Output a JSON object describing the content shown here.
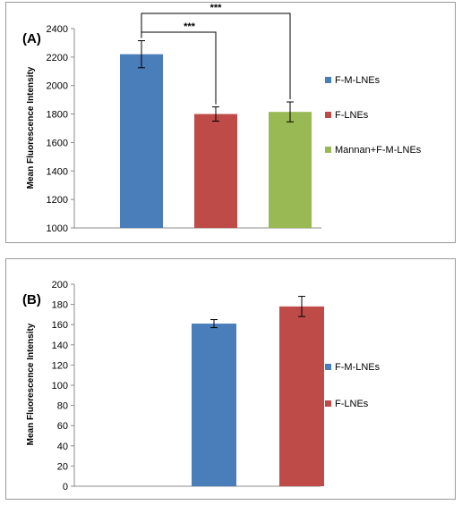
{
  "chart_data": [
    {
      "type": "bar",
      "panel_label": "(A)",
      "title": "",
      "xlabel": "",
      "ylabel": "Mean Fluorescence Intensity",
      "ylim": [
        1000,
        2400
      ],
      "yticks": [
        1000,
        1200,
        1400,
        1600,
        1800,
        2000,
        2200,
        2400
      ],
      "grid": false,
      "legend_position": "right",
      "series": [
        {
          "name": "F-M-LNEs",
          "value": 2220,
          "error": 95,
          "color": "#4a7ebb"
        },
        {
          "name": "F-LNEs",
          "value": 1800,
          "error": 50,
          "color": "#be4b48"
        },
        {
          "name": "Mannan+F-M-LNEs",
          "value": 1815,
          "error": 70,
          "color": "#98b954"
        }
      ],
      "annotations": [
        {
          "from": "F-M-LNEs",
          "to": "F-LNEs",
          "text": "***"
        },
        {
          "from": "F-M-LNEs",
          "to": "Mannan+F-M-LNEs",
          "text": "***"
        }
      ]
    },
    {
      "type": "bar",
      "panel_label": "(B)",
      "title": "",
      "xlabel": "",
      "ylabel": "Mean Fluorescence Intensity",
      "ylim": [
        0,
        200
      ],
      "yticks": [
        0,
        20,
        40,
        60,
        80,
        100,
        120,
        140,
        160,
        180,
        200
      ],
      "grid": false,
      "legend_position": "right",
      "series": [
        {
          "name": "F-M-LNEs",
          "value": 161,
          "error": 4,
          "color": "#4a7ebb"
        },
        {
          "name": "F-LNEs",
          "value": 178,
          "error": 10,
          "color": "#be4b48"
        }
      ]
    }
  ]
}
